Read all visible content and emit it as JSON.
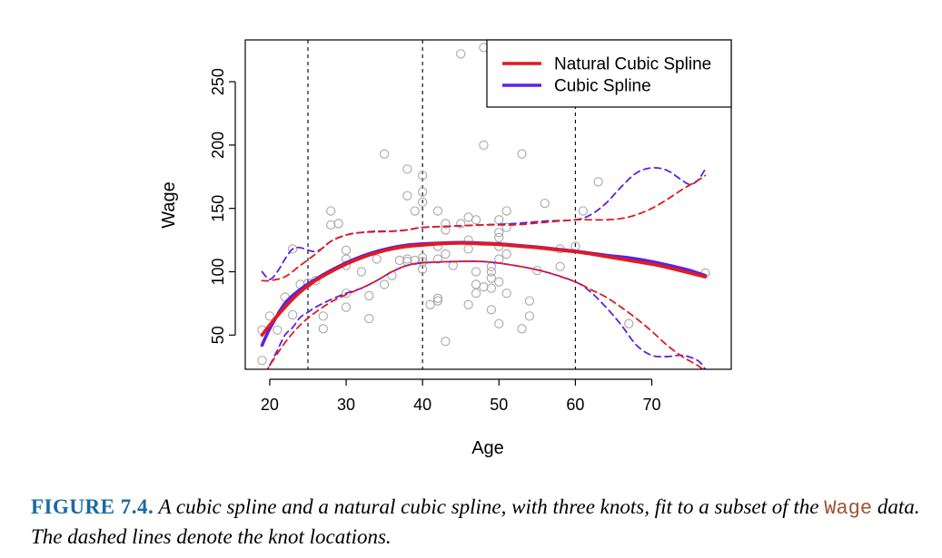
{
  "chart_data": {
    "type": "scatter",
    "xlabel": "Age",
    "ylabel": "Wage",
    "xlim": [
      16.8,
      80.4
    ],
    "ylim": [
      23,
      283
    ],
    "x_ticks": [
      20,
      30,
      40,
      50,
      60,
      70
    ],
    "y_ticks": [
      50,
      100,
      150,
      200,
      250
    ],
    "knots": [
      25,
      40,
      60
    ],
    "legend": {
      "position": "top-right",
      "entries": [
        {
          "label": "Natural Cubic Spline",
          "color": "#e41a1c"
        },
        {
          "label": "Cubic Spline",
          "color": "#5b21e6"
        }
      ]
    },
    "points": [
      [
        19,
        30
      ],
      [
        19,
        54
      ],
      [
        20,
        65
      ],
      [
        21,
        54
      ],
      [
        22,
        80
      ],
      [
        23,
        66
      ],
      [
        23,
        118
      ],
      [
        24,
        90
      ],
      [
        25,
        91
      ],
      [
        26,
        93
      ],
      [
        27,
        65
      ],
      [
        27,
        55
      ],
      [
        28,
        148
      ],
      [
        28,
        137
      ],
      [
        29,
        138
      ],
      [
        30,
        117
      ],
      [
        30,
        110
      ],
      [
        30,
        105
      ],
      [
        30,
        83
      ],
      [
        30,
        72
      ],
      [
        32,
        100
      ],
      [
        33,
        63
      ],
      [
        33,
        81
      ],
      [
        34,
        110
      ],
      [
        35,
        193
      ],
      [
        35,
        90
      ],
      [
        36,
        97
      ],
      [
        37,
        109
      ],
      [
        38,
        110
      ],
      [
        38,
        181
      ],
      [
        38,
        160
      ],
      [
        38,
        108
      ],
      [
        39,
        148
      ],
      [
        39,
        109
      ],
      [
        40,
        176
      ],
      [
        40,
        163
      ],
      [
        40,
        155
      ],
      [
        40,
        111
      ],
      [
        40,
        108
      ],
      [
        40,
        102
      ],
      [
        41,
        74
      ],
      [
        42,
        148
      ],
      [
        42,
        120
      ],
      [
        42,
        110
      ],
      [
        42,
        79
      ],
      [
        42,
        77
      ],
      [
        43,
        138
      ],
      [
        43,
        133
      ],
      [
        43,
        114
      ],
      [
        43,
        45
      ],
      [
        44,
        105
      ],
      [
        45,
        272
      ],
      [
        45,
        138
      ],
      [
        46,
        143
      ],
      [
        46,
        125
      ],
      [
        46,
        118
      ],
      [
        46,
        74
      ],
      [
        47,
        141
      ],
      [
        47,
        100
      ],
      [
        47,
        90
      ],
      [
        47,
        83
      ],
      [
        48,
        277
      ],
      [
        48,
        200
      ],
      [
        48,
        88
      ],
      [
        49,
        100
      ],
      [
        49,
        95
      ],
      [
        49,
        104
      ],
      [
        49,
        87
      ],
      [
        49,
        70
      ],
      [
        50,
        141
      ],
      [
        50,
        131
      ],
      [
        50,
        127
      ],
      [
        50,
        120
      ],
      [
        50,
        110
      ],
      [
        50,
        92
      ],
      [
        50,
        59
      ],
      [
        51,
        282
      ],
      [
        51,
        148
      ],
      [
        51,
        135
      ],
      [
        51,
        114
      ],
      [
        51,
        83
      ],
      [
        53,
        193
      ],
      [
        53,
        55
      ],
      [
        54,
        77
      ],
      [
        54,
        65
      ],
      [
        55,
        101
      ],
      [
        56,
        154
      ],
      [
        58,
        118
      ],
      [
        58,
        104
      ],
      [
        60,
        120
      ],
      [
        61,
        148
      ],
      [
        63,
        171
      ],
      [
        67,
        59
      ],
      [
        77,
        99
      ]
    ],
    "series": [
      {
        "name": "Natural Cubic Spline",
        "color": "#e41a1c",
        "role": "fit",
        "x": [
          19,
          20,
          22,
          24,
          26,
          28,
          30,
          32,
          34,
          36,
          38,
          40,
          42,
          44,
          46,
          48,
          50,
          52,
          55,
          58,
          61,
          64,
          67,
          70,
          73,
          75,
          77
        ],
        "y": [
          50,
          58,
          72,
          84,
          93,
          100,
          106,
          111,
          115,
          118,
          120,
          121,
          122,
          122.5,
          122.5,
          122,
          121.5,
          120.5,
          119,
          117,
          115,
          112,
          109,
          106,
          102,
          99,
          96
        ]
      },
      {
        "name": "Natural Cubic Spline",
        "color": "#e41a1c",
        "role": "upper-band",
        "x": [
          19,
          20,
          22,
          24,
          26,
          28,
          30,
          32,
          34,
          36,
          38,
          40,
          44,
          48,
          52,
          56,
          60,
          62,
          64,
          66,
          68,
          70,
          72,
          74,
          76,
          77
        ],
        "y": [
          93,
          93,
          96,
          105,
          114,
          124,
          129,
          131,
          131.5,
          132,
          133,
          135,
          136,
          137,
          137,
          139,
          141,
          141,
          141,
          142,
          145,
          150,
          157,
          165,
          172,
          176
        ]
      },
      {
        "name": "Natural Cubic Spline",
        "color": "#e41a1c",
        "role": "lower-band",
        "x": [
          19.5,
          20,
          22,
          24,
          26,
          28,
          30,
          32,
          34,
          36,
          38,
          40,
          44,
          48,
          52,
          56,
          60,
          62,
          64,
          66,
          68,
          70,
          72,
          74,
          76,
          77
        ],
        "y": [
          20,
          26,
          44,
          58,
          68,
          76,
          82,
          87,
          93,
          100,
          105,
          107,
          108,
          108,
          105,
          100,
          92,
          86,
          80,
          72,
          63,
          53,
          42,
          33,
          26,
          21
        ]
      },
      {
        "name": "Cubic Spline",
        "color": "#5b21e6",
        "role": "fit",
        "x": [
          19,
          20,
          22,
          24,
          26,
          28,
          30,
          32,
          34,
          36,
          38,
          40,
          42,
          44,
          46,
          48,
          50,
          52,
          55,
          58,
          61,
          64,
          67,
          70,
          73,
          75,
          77
        ],
        "y": [
          42,
          55,
          75,
          86,
          94,
          101,
          107,
          112,
          116,
          119,
          121,
          122,
          122.5,
          123,
          123,
          122.5,
          122,
          121,
          119.5,
          117.5,
          115.5,
          113,
          111,
          108,
          104,
          101,
          97
        ]
      },
      {
        "name": "Cubic Spline",
        "color": "#5b21e6",
        "role": "upper-band",
        "x": [
          19,
          20,
          21,
          22,
          23,
          24,
          25,
          26,
          27,
          28,
          30,
          32,
          34,
          36,
          38,
          40,
          44,
          48,
          52,
          56,
          60,
          62,
          64,
          66,
          68,
          70,
          72,
          74,
          75,
          76,
          77
        ],
        "y": [
          100,
          94,
          100,
          110,
          118,
          119,
          117,
          116,
          119,
          124,
          129,
          131,
          132,
          132,
          133,
          135,
          136,
          137,
          138,
          140,
          141,
          145,
          154,
          167,
          178,
          182,
          180,
          172,
          169,
          172,
          181
        ]
      },
      {
        "name": "Cubic Spline",
        "color": "#5b21e6",
        "role": "lower-band",
        "x": [
          20,
          21,
          22,
          23,
          24,
          25,
          26,
          28,
          30,
          32,
          34,
          36,
          38,
          40,
          44,
          48,
          52,
          56,
          60,
          62,
          64,
          66,
          68,
          70,
          72,
          74,
          76,
          77
        ],
        "y": [
          26,
          38,
          50,
          56,
          64,
          68,
          72,
          78,
          83,
          87,
          93,
          100,
          105,
          107,
          108,
          108,
          105,
          100,
          92,
          84,
          72,
          58,
          42,
          34,
          33,
          34,
          30,
          23
        ]
      }
    ]
  },
  "caption": {
    "label": "FIGURE 7.4.",
    "text_before": " A cubic spline and a natural cubic spline, with three knots, fit to a subset of the ",
    "code": "Wage",
    "text_after": " data. The dashed lines denote the knot locations."
  }
}
